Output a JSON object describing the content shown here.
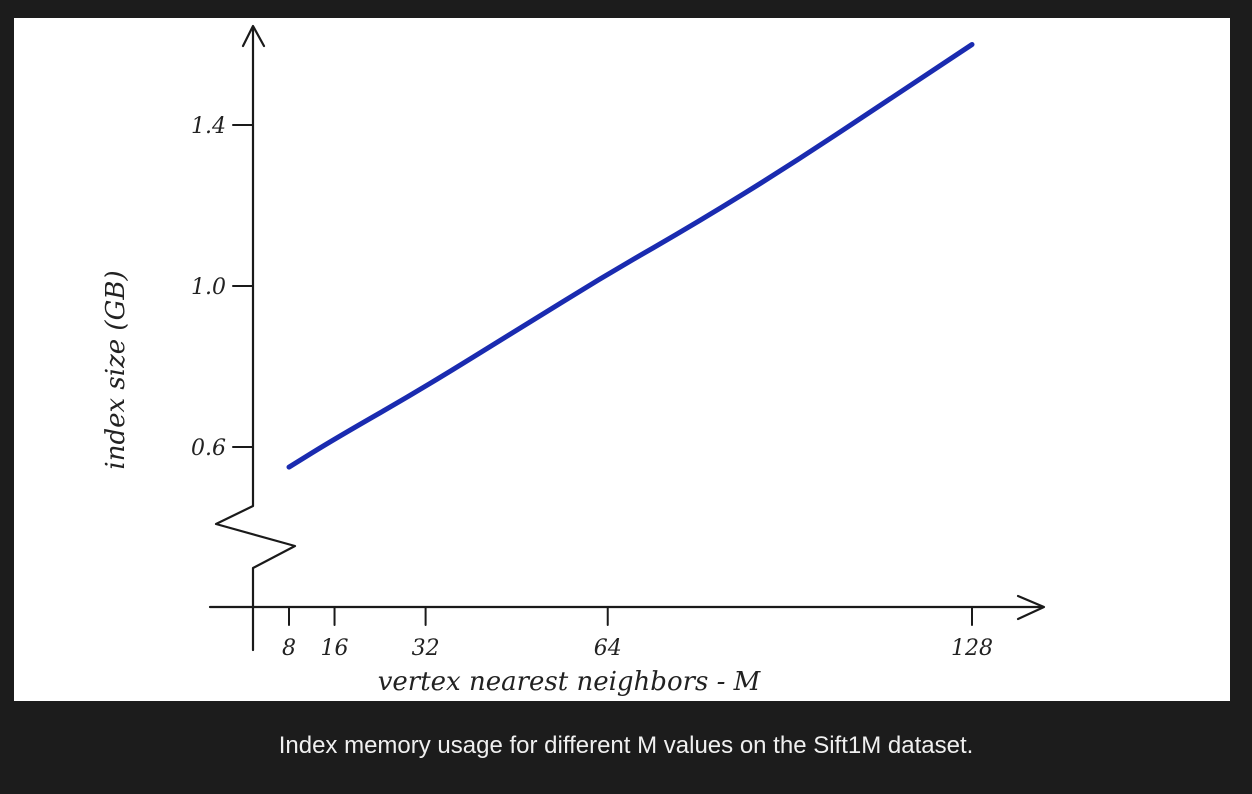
{
  "caption": "Index memory usage for different M values on the Sift1M dataset.",
  "colors": {
    "background": "#1c1c1c",
    "panel": "#ffffff",
    "series": "#1a2bb0",
    "axis": "#1a1a1a",
    "caption_text": "#f0f0f0"
  },
  "chart_data": {
    "type": "line",
    "title": "",
    "xlabel": "vertex nearest neighbors - M",
    "ylabel": "index size (GB)",
    "x_ticks": [
      "8",
      "16",
      "32",
      "64",
      "128"
    ],
    "y_ticks": [
      "0.6",
      "1.0",
      "1.4"
    ],
    "y_axis_break": true,
    "grid": false,
    "xlim": [
      8,
      128
    ],
    "ylim": [
      0.6,
      1.4
    ],
    "series": [
      {
        "x": [
          8,
          16,
          32,
          48,
          64,
          80,
          96,
          112,
          128
        ],
        "y": [
          0.55,
          0.62,
          0.75,
          0.89,
          1.03,
          1.16,
          1.3,
          1.45,
          1.6
        ]
      }
    ]
  }
}
